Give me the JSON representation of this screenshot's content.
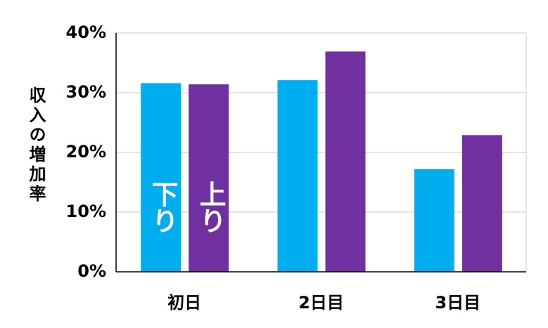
{
  "chart_data": {
    "type": "bar",
    "y_label": "収入の増加率",
    "categories": [
      "初日",
      "2日目",
      "3日目"
    ],
    "series": [
      {
        "name": "下り",
        "color": "#00aeef",
        "values": [
          31.6,
          32.1,
          17.2
        ]
      },
      {
        "name": "上り",
        "color": "#7030a0",
        "values": [
          31.4,
          36.9,
          22.9
        ]
      }
    ],
    "ylim": [
      0,
      40
    ],
    "yticks": [
      {
        "value": 0,
        "label": "0%"
      },
      {
        "value": 10,
        "label": "10%"
      },
      {
        "value": 20,
        "label": "20%"
      },
      {
        "value": 30,
        "label": "30%"
      },
      {
        "value": 40,
        "label": "40%"
      }
    ],
    "grid": true
  }
}
